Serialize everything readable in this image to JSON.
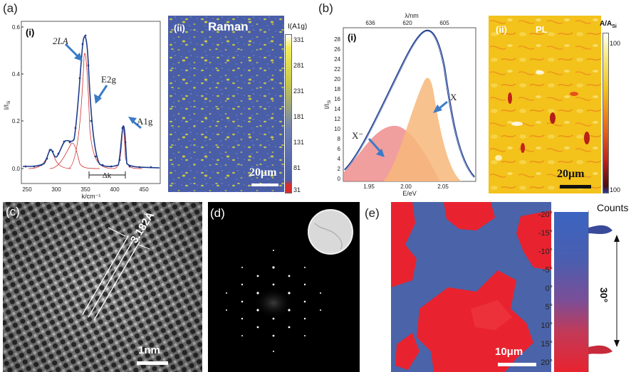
{
  "panels": {
    "a": {
      "letter": "(a)",
      "i": {
        "sublabel": "(i)",
        "xlabel": "k/cm⁻¹",
        "ylabel": "I/I",
        "ylabel_sub": "Si",
        "xticks": [
          "250",
          "300",
          "350",
          "400",
          "450"
        ],
        "yticks": [
          "0.0",
          "0.2",
          "0.4",
          "0.6"
        ],
        "peak_labels": [
          "2LA",
          "E2g",
          "A1g"
        ],
        "delta": "Δk"
      },
      "ii": {
        "sublabel": "(ii)",
        "title": "Raman",
        "scalebar": "20μm",
        "colorbar_title": "I(A1g)",
        "colorbar_ticks": [
          "331",
          "281",
          "231",
          "181",
          "131",
          "81",
          "31"
        ]
      }
    },
    "b": {
      "letter": "(b)",
      "i": {
        "sublabel": "(i)",
        "top_axis_label": "λ/nm",
        "top_ticks": [
          "636",
          "620",
          "605"
        ],
        "xlabel": "E/eV",
        "ylabel": "I/I",
        "ylabel_sub": "Si",
        "xticks": [
          "1.95",
          "2.00",
          "2.05"
        ],
        "yticks": [
          "0",
          "2",
          "4",
          "6",
          "8",
          "10",
          "12",
          "14",
          "16",
          "18",
          "20",
          "22",
          "24",
          "26",
          "28"
        ],
        "peak_labels": [
          "X⁻",
          "X"
        ]
      },
      "ii": {
        "sublabel": "(ii)",
        "title": "PL",
        "scalebar": "20μm",
        "colorbar_title": "A/A",
        "colorbar_title_sub": "Si",
        "colorbar_ticks": [
          "100",
          "100"
        ]
      }
    },
    "c": {
      "letter": "(c)",
      "spacing": "3.182Å",
      "scalebar": "1nm"
    },
    "d": {
      "letter": "(d)"
    },
    "e": {
      "letter": "(e)",
      "scalebar": "10μm",
      "counts_label": "Counts",
      "angle_ticks": [
        "-20°",
        "-15°",
        "-10°",
        "-5°",
        "0°",
        "5°",
        "10°",
        "15°",
        "20°"
      ],
      "angle_annotation": "30°"
    }
  },
  "colors": {
    "raman_bg": "#4a5ea8",
    "raman_spots": "#d8d23a",
    "pl_bg": "#f3c21b",
    "map_red": "#e8232f",
    "map_blue": "#4b63a8",
    "fit_red": "#d23030",
    "data_blue": "#1f3c8c",
    "arrow_blue": "#3b7bc8"
  }
}
